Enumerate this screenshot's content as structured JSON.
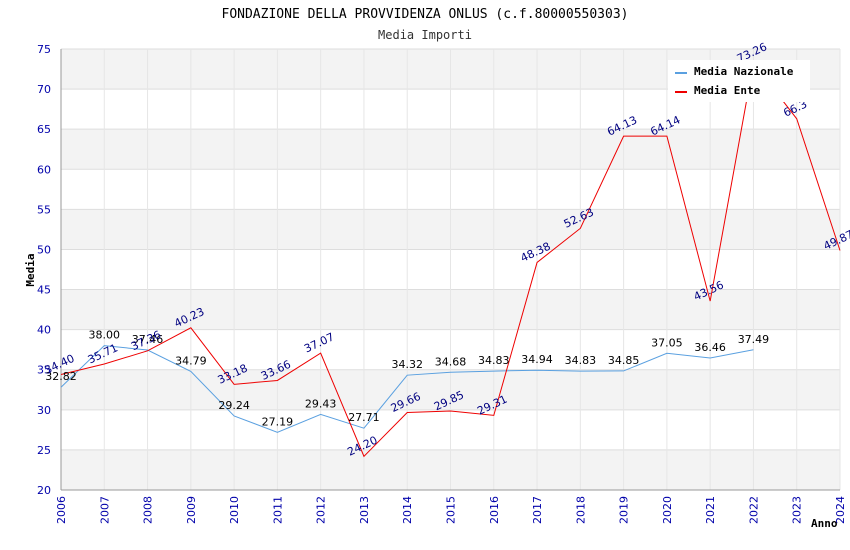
{
  "chart_data": {
    "type": "line",
    "title": "FONDAZIONE DELLA PROVVIDENZA ONLUS (c.f.80000550303)",
    "subtitle": "Media Importi",
    "xlabel": "Anno",
    "ylabel": "Media",
    "ylim": [
      20,
      75
    ],
    "yticks": [
      20,
      25,
      30,
      35,
      40,
      45,
      50,
      55,
      60,
      65,
      70,
      75
    ],
    "categories": [
      "2006",
      "2007",
      "2008",
      "2009",
      "2010",
      "2011",
      "2012",
      "2013",
      "2014",
      "2015",
      "2016",
      "2017",
      "2018",
      "2019",
      "2020",
      "2021",
      "2022",
      "2023",
      "2024"
    ],
    "grid": true,
    "legend_position": "top-right",
    "series": [
      {
        "name": "Media Nazionale",
        "color": "#5aa0e0",
        "values": [
          32.82,
          38.0,
          37.46,
          34.79,
          29.24,
          27.19,
          29.43,
          27.71,
          34.32,
          34.68,
          34.83,
          34.94,
          34.83,
          34.85,
          37.05,
          36.46,
          37.49,
          null,
          null
        ],
        "labels": [
          "32.82",
          "38.00",
          "37.46",
          "34.79",
          "29.24",
          "27.19",
          "29.43",
          "27.71",
          "34.32",
          "34.68",
          "34.83",
          "34.94",
          "34.83",
          "34.85",
          "37.05",
          "36.46",
          "37.49",
          "",
          ""
        ]
      },
      {
        "name": "Media Ente",
        "color": "#ee0000",
        "values": [
          34.4,
          35.71,
          37.36,
          40.23,
          33.18,
          33.66,
          37.07,
          24.2,
          29.66,
          29.85,
          29.31,
          48.38,
          52.63,
          64.13,
          64.14,
          43.56,
          73.26,
          66.3,
          49.87
        ],
        "labels": [
          "34.40",
          "35.71",
          "37.36",
          "40.23",
          "33.18",
          "33.66",
          "37.07",
          "24.20",
          "29.66",
          "29.85",
          "29.31",
          "48.38",
          "52.63",
          "64.13",
          "64.14",
          "43.56",
          "73.26",
          "66.3",
          "49.87"
        ]
      }
    ]
  }
}
